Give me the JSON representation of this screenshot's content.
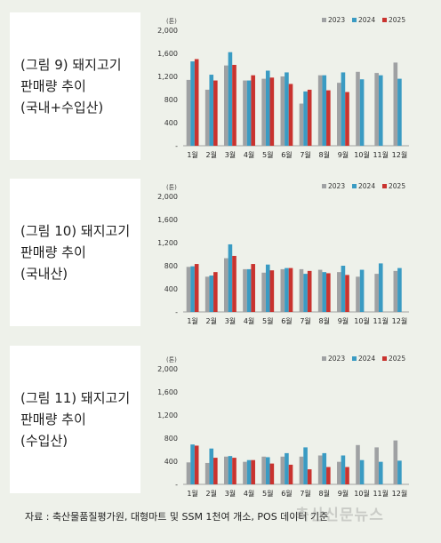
{
  "panels": [
    {
      "label": "(그림 9) 돼지고기\n판매량 추이\n(국내+수입산)"
    },
    {
      "label": "(그림 10) 돼지고기\n판매량 추이\n(국내산)"
    },
    {
      "label": "(그림 11) 돼지고기\n판매량 추이\n(수입산)"
    }
  ],
  "source_note": "자료 : 축산물품질평가원, 대형마트 및 SSM 1천여 개소, POS 데이터 기준",
  "watermark": "축산신문뉴스",
  "colors": {
    "2023": "#9fa1a3",
    "2024": "#3a9bc3",
    "2025": "#c9332f"
  },
  "chart_data": [
    {
      "type": "bar",
      "unit": "(톤)",
      "categories": [
        "1월",
        "2월",
        "3월",
        "4월",
        "5월",
        "6월",
        "7월",
        "8월",
        "9월",
        "10월",
        "11월",
        "12월"
      ],
      "ylim": [
        0,
        2000
      ],
      "yticks": [
        "-",
        "400",
        "800",
        "1,200",
        "1,600",
        "2,000"
      ],
      "series": [
        {
          "name": "2023",
          "values": [
            1140,
            970,
            1390,
            1130,
            1160,
            1200,
            730,
            1220,
            1090,
            1280,
            1260,
            1440
          ]
        },
        {
          "name": "2024",
          "values": [
            1460,
            1230,
            1620,
            1130,
            1300,
            1270,
            940,
            1220,
            1270,
            1150,
            1220,
            1160
          ]
        },
        {
          "name": "2025",
          "values": [
            1500,
            1130,
            1400,
            1220,
            1180,
            1070,
            970,
            960,
            930,
            null,
            null,
            null
          ]
        }
      ]
    },
    {
      "type": "bar",
      "unit": "(톤)",
      "categories": [
        "1월",
        "2월",
        "3월",
        "4월",
        "5월",
        "6월",
        "7월",
        "8월",
        "9월",
        "10월",
        "11월",
        "12월"
      ],
      "ylim": [
        0,
        2000
      ],
      "yticks": [
        "-",
        "400",
        "800",
        "1,200",
        "1,600",
        "2,000"
      ],
      "series": [
        {
          "name": "2023",
          "values": [
            780,
            610,
            930,
            740,
            680,
            740,
            740,
            730,
            690,
            610,
            660,
            710
          ]
        },
        {
          "name": "2024",
          "values": [
            790,
            630,
            1170,
            740,
            820,
            760,
            660,
            690,
            800,
            730,
            840,
            760
          ]
        },
        {
          "name": "2025",
          "values": [
            830,
            690,
            970,
            830,
            720,
            760,
            710,
            670,
            640,
            null,
            null,
            null
          ]
        }
      ]
    },
    {
      "type": "bar",
      "unit": "(톤)",
      "categories": [
        "1월",
        "2월",
        "3월",
        "4월",
        "5월",
        "6월",
        "7월",
        "8월",
        "9월",
        "10월",
        "11월",
        "12월"
      ],
      "ylim": [
        0,
        2000
      ],
      "yticks": [
        "-",
        "400",
        "800",
        "1,200",
        "1,600",
        "2,000"
      ],
      "series": [
        {
          "name": "2023",
          "values": [
            380,
            370,
            480,
            390,
            480,
            480,
            480,
            500,
            390,
            680,
            640,
            760
          ]
        },
        {
          "name": "2024",
          "values": [
            690,
            620,
            490,
            420,
            470,
            540,
            640,
            540,
            500,
            420,
            390,
            410
          ]
        },
        {
          "name": "2025",
          "values": [
            670,
            460,
            460,
            420,
            360,
            340,
            260,
            300,
            300,
            null,
            null,
            null
          ]
        }
      ]
    }
  ]
}
